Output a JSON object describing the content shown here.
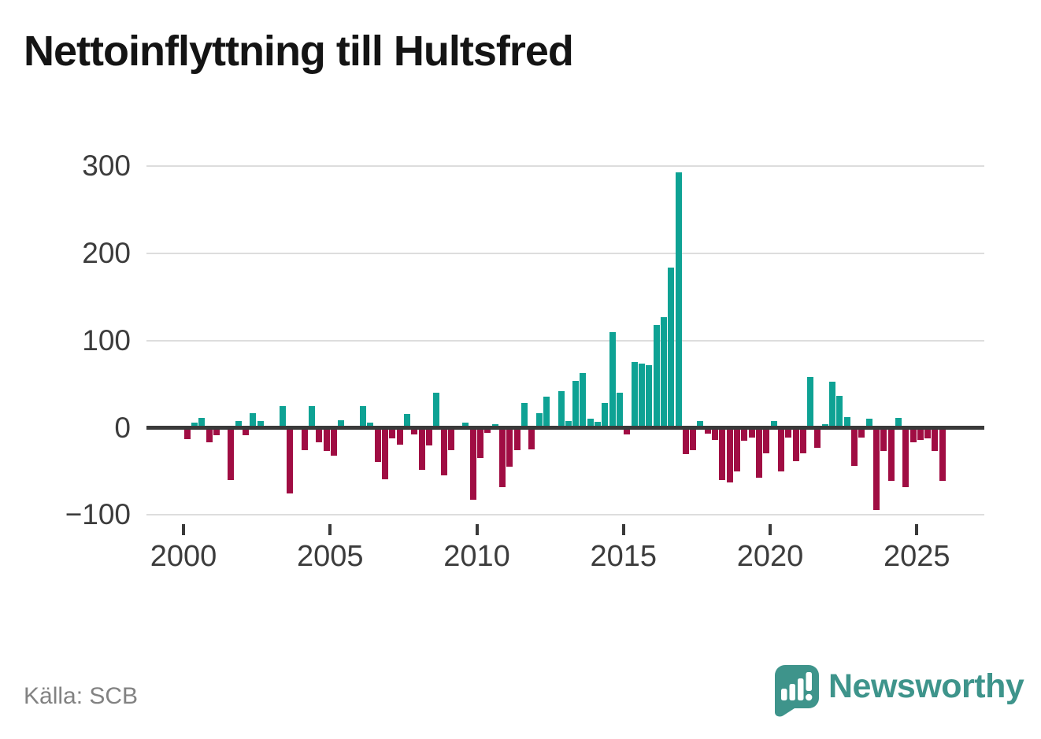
{
  "title": "Nettoinflyttning till Hultsfred",
  "source": "Källa: SCB",
  "branding": {
    "name": "Newsworthy"
  },
  "colors": {
    "positive": "#0ea294",
    "negative": "#a00d43",
    "axis": "#3a3a3a",
    "grid": "#dddddd",
    "tick_label": "#3c3c3c",
    "brand_teal": "#3e948b"
  },
  "y_axis": {
    "tick_labels": [
      "300",
      "200",
      "100",
      "0",
      "−100"
    ],
    "tick_values": [
      300,
      200,
      100,
      0,
      -100
    ]
  },
  "x_axis": {
    "tick_labels": [
      "2000",
      "2005",
      "2010",
      "2015",
      "2020",
      "2025"
    ],
    "tick_values": [
      2000,
      2005,
      2010,
      2015,
      2020,
      2025
    ]
  },
  "chart_data": {
    "type": "bar",
    "title": "Nettoinflyttning till Hultsfred",
    "xlabel": "",
    "ylabel": "",
    "ylim": [
      -100,
      300
    ],
    "grid": "horizontal",
    "legend": "none",
    "categories": [
      "2000Q1",
      "2000Q2",
      "2000Q3",
      "2000Q4",
      "2001Q1",
      "2001Q2",
      "2001Q3",
      "2001Q4",
      "2002Q1",
      "2002Q2",
      "2002Q3",
      "2002Q4",
      "2003Q1",
      "2003Q2",
      "2003Q3",
      "2003Q4",
      "2004Q1",
      "2004Q2",
      "2004Q3",
      "2004Q4",
      "2005Q1",
      "2005Q2",
      "2005Q3",
      "2005Q4",
      "2006Q1",
      "2006Q2",
      "2006Q3",
      "2006Q4",
      "2007Q1",
      "2007Q2",
      "2007Q3",
      "2007Q4",
      "2008Q1",
      "2008Q2",
      "2008Q3",
      "2008Q4",
      "2009Q1",
      "2009Q2",
      "2009Q3",
      "2009Q4",
      "2010Q1",
      "2010Q2",
      "2010Q3",
      "2010Q4",
      "2011Q1",
      "2011Q2",
      "2011Q3",
      "2011Q4",
      "2012Q1",
      "2012Q2",
      "2012Q3",
      "2012Q4",
      "2013Q1",
      "2013Q2",
      "2013Q3",
      "2013Q4",
      "2014Q1",
      "2014Q2",
      "2014Q3",
      "2014Q4",
      "2015Q1",
      "2015Q2",
      "2015Q3",
      "2015Q4",
      "2016Q1",
      "2016Q2",
      "2016Q3",
      "2016Q4",
      "2017Q1",
      "2017Q2",
      "2017Q3",
      "2017Q4",
      "2018Q1",
      "2018Q2",
      "2018Q3",
      "2018Q4",
      "2019Q1",
      "2019Q2",
      "2019Q3",
      "2019Q4",
      "2020Q1",
      "2020Q2",
      "2020Q3",
      "2020Q4",
      "2021Q1",
      "2021Q2",
      "2021Q3",
      "2021Q4",
      "2022Q1",
      "2022Q2",
      "2022Q3",
      "2022Q4",
      "2023Q1",
      "2023Q2",
      "2023Q3",
      "2023Q4",
      "2024Q1",
      "2024Q2",
      "2024Q3",
      "2024Q4",
      "2025Q1",
      "2025Q2",
      "2025Q3",
      "2025Q4"
    ],
    "values": [
      -13,
      6,
      11,
      -17,
      -9,
      0,
      -60,
      8,
      -9,
      17,
      8,
      0,
      0,
      25,
      -75,
      0,
      -26,
      25,
      -17,
      -27,
      -32,
      9,
      0,
      0,
      25,
      6,
      -39,
      -59,
      -12,
      -19,
      16,
      -8,
      -48,
      -20,
      40,
      -55,
      -26,
      0,
      6,
      -83,
      -35,
      -6,
      4,
      -68,
      -45,
      -26,
      28,
      -25,
      17,
      36,
      0,
      42,
      8,
      54,
      63,
      10,
      7,
      28,
      110,
      40,
      -8,
      75,
      74,
      72,
      118,
      127,
      184,
      293,
      -30,
      -26,
      8,
      -7,
      -14,
      -60,
      -63,
      -50,
      -15,
      -11,
      -57,
      -29,
      8,
      -50,
      -11,
      -38,
      -29,
      58,
      -23,
      4,
      53,
      37,
      12,
      -44,
      -11,
      10,
      -94,
      -27,
      -61,
      11,
      -68,
      -17,
      -14,
      -12,
      -27,
      -61
    ]
  },
  "layout_hints": {
    "bar_color_rule": "positive=teal, negative=maroon",
    "x_range_years": [
      2000,
      2027
    ]
  }
}
